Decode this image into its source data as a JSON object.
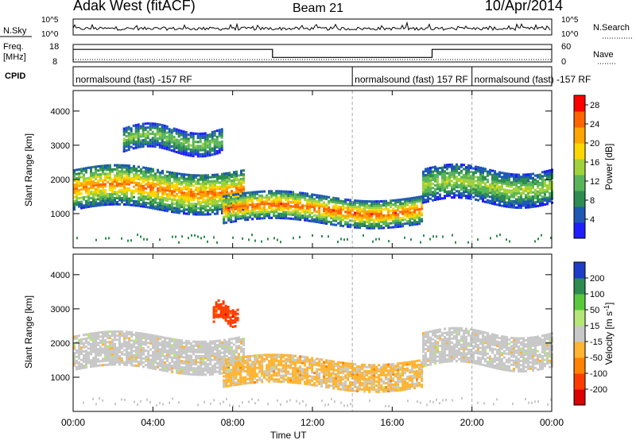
{
  "header": {
    "title_left": "Adak West (fitACF)",
    "title_center": "Beam 21",
    "title_right": "10/Apr/2014"
  },
  "strips": {
    "nsky": {
      "label": "N.Sky",
      "left_ticks": [
        "10^5",
        "10^0"
      ],
      "right_ticks": [
        "10^5",
        "10^0"
      ],
      "right_label": "N.Search"
    },
    "freq": {
      "label_top": "Freq.",
      "label_unit": "[MHz]",
      "left_ticks": [
        "18",
        "8"
      ],
      "right_ticks": [
        "60",
        "0"
      ],
      "right_label": "Nave",
      "series": [
        {
          "start_h": 0,
          "end_h": 10.0,
          "freq_mhz": 15.2
        },
        {
          "start_h": 10.0,
          "end_h": 18.0,
          "freq_mhz": 10.6
        },
        {
          "start_h": 18.0,
          "end_h": 24.0,
          "freq_mhz": 15.2
        }
      ],
      "nave_level": 0
    },
    "cpid": {
      "label": "CPID",
      "segments": [
        {
          "text": "normalsound (fast) -157 RF",
          "start_h": 0
        },
        {
          "text": "normalsound (fast) 157 RF",
          "start_h": 14.0
        },
        {
          "text": "normalsound (fast) -157 RF",
          "start_h": 20.0
        }
      ]
    }
  },
  "chart_data": [
    {
      "type": "heatmap",
      "ylabel": "Slant Range [km]",
      "xlabel": "",
      "xlim": [
        0,
        24
      ],
      "ylim": [
        0,
        4600
      ],
      "y_ticks": [
        "1000",
        "2000",
        "3000",
        "4000"
      ],
      "y_tick_values": [
        1000,
        2000,
        3000,
        4000
      ],
      "colorbar_label": "Power [dB]",
      "colorbar_ticks": [
        "4",
        "8",
        "12",
        "16",
        "20",
        "24",
        "28"
      ],
      "colorbar_range": [
        0,
        30
      ],
      "colorbar_colors": [
        "#1e1eff",
        "#1e5ab4",
        "#2d8c50",
        "#5ab45a",
        "#a0d23c",
        "#ffd700",
        "#ffa500",
        "#ff6400",
        "#ff0000"
      ],
      "echo_regions": [
        {
          "x0": 0.0,
          "x1": 8.5,
          "r0": 1100,
          "r1": 2300,
          "peak": 24
        },
        {
          "x0": 2.5,
          "x1": 7.5,
          "r0": 2800,
          "r1": 3500,
          "peak": 14
        },
        {
          "x0": 7.5,
          "x1": 17.5,
          "r0": 700,
          "r1": 1500,
          "peak": 26
        },
        {
          "x0": 17.5,
          "x1": 24.0,
          "r0": 1300,
          "r1": 2300,
          "peak": 16
        }
      ]
    },
    {
      "type": "heatmap",
      "ylabel": "Slant Range [km]",
      "xlabel": "Time UT",
      "xlim": [
        0,
        24
      ],
      "ylim": [
        0,
        4600
      ],
      "x_ticks": [
        "00:00",
        "04:00",
        "08:00",
        "12:00",
        "16:00",
        "20:00",
        "00:00"
      ],
      "x_tick_values": [
        0,
        4,
        8,
        12,
        16,
        20,
        24
      ],
      "y_ticks": [
        "1000",
        "2000",
        "3000",
        "4000"
      ],
      "y_tick_values": [
        1000,
        2000,
        3000,
        4000
      ],
      "colorbar_label": "Velocity [m s^-1]",
      "colorbar_ticks": [
        "200",
        "100",
        "50",
        "15",
        "-15",
        "-50",
        "-100",
        "-200"
      ],
      "colorbar_colors": [
        "#1e3cc8",
        "#2d8c50",
        "#5ac83c",
        "#b4e678",
        "#c8c8c8",
        "#ffb432",
        "#ff8200",
        "#ff3c00",
        "#dc0000"
      ],
      "echo_regions": [
        {
          "x0": 0.0,
          "x1": 8.5,
          "r0": 1200,
          "r1": 2200,
          "v": 0
        },
        {
          "x0": 7.5,
          "x1": 17.5,
          "r0": 700,
          "r1": 1500,
          "v": -20
        },
        {
          "x0": 17.5,
          "x1": 24.0,
          "r0": 1300,
          "r1": 2300,
          "v": 0
        },
        {
          "x0": 7.0,
          "x1": 8.3,
          "r0": 2600,
          "r1": 3100,
          "v": -150
        }
      ]
    }
  ]
}
